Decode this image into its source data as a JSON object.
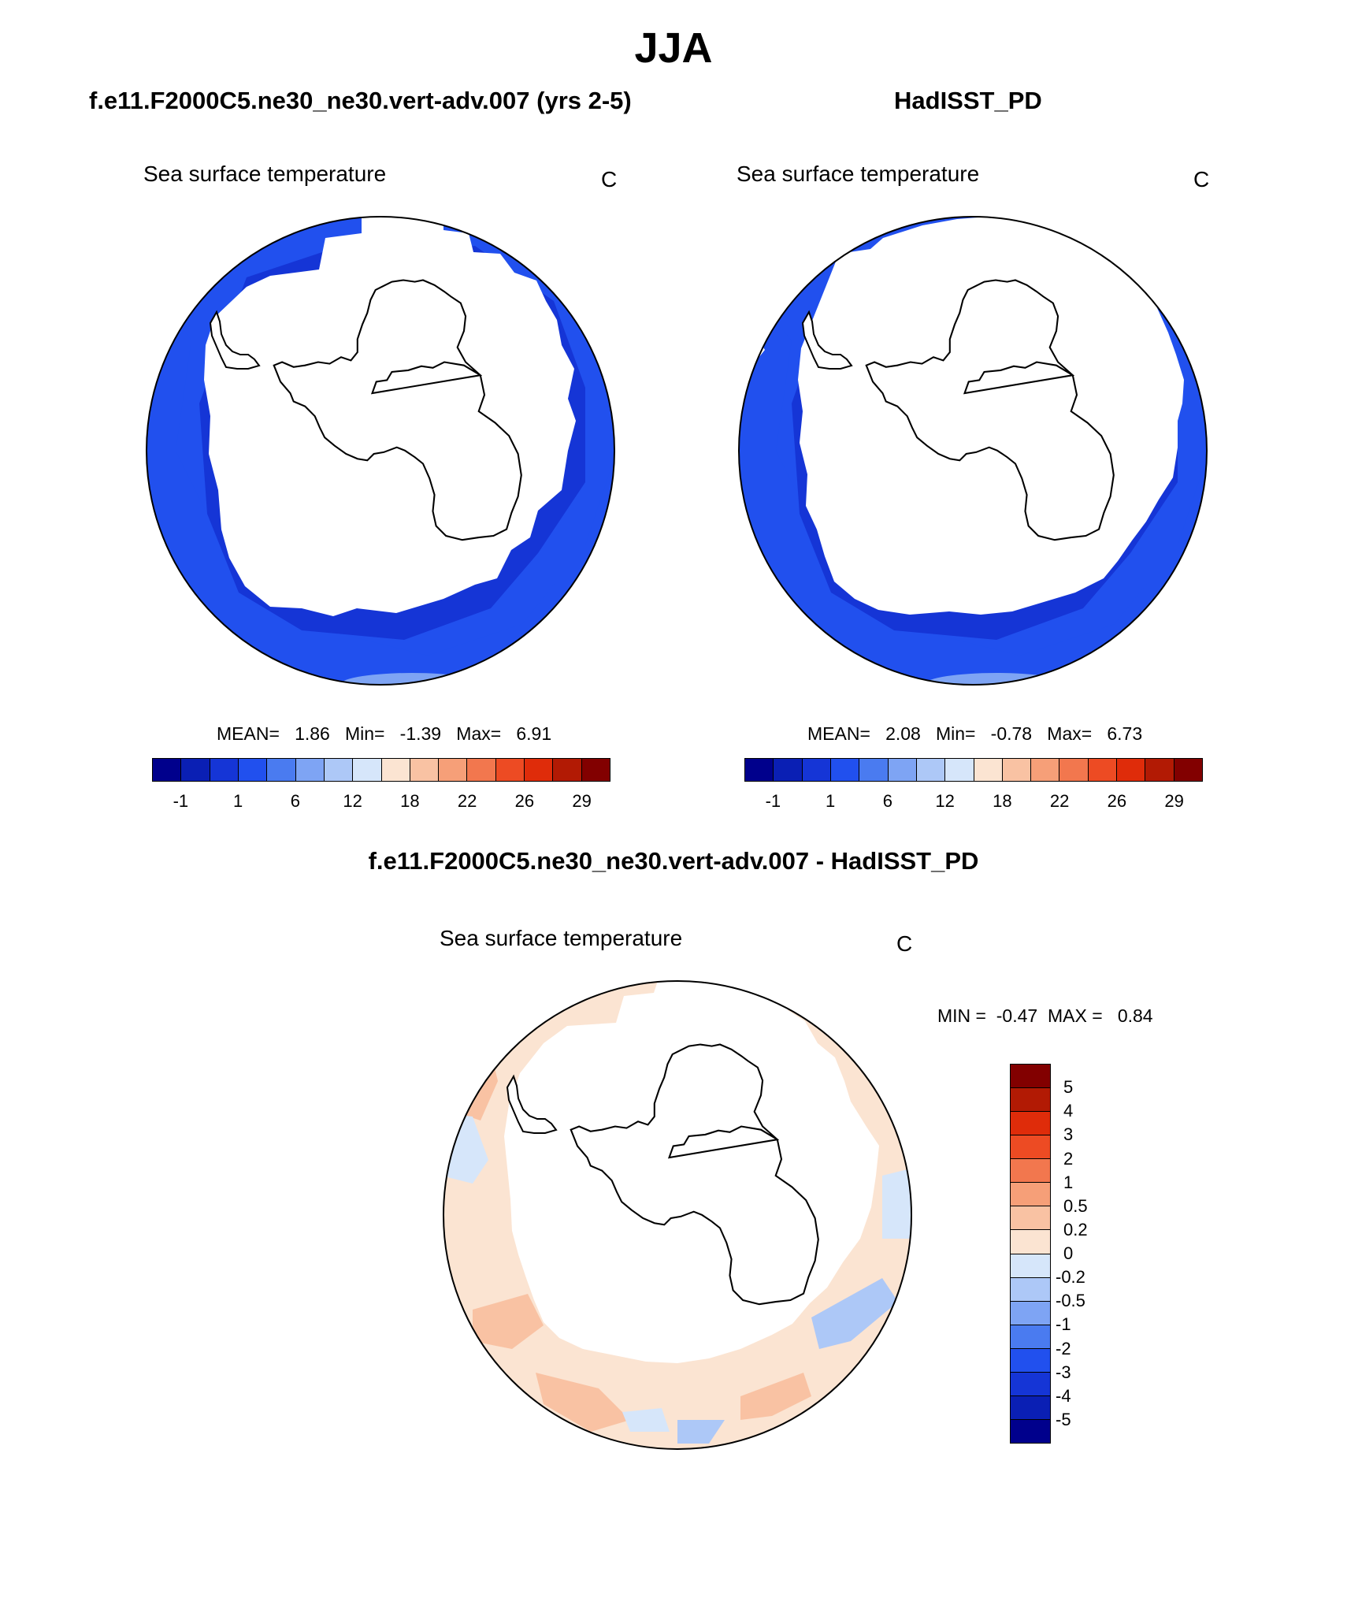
{
  "figure": {
    "season_title": "JJA",
    "left_panel_title": "f.e11.F2000C5.ne30_ne30.vert-adv.007 (yrs 2-5)",
    "right_panel_title": "HadISST_PD",
    "diff_panel_title": "f.e11.F2000C5.ne30_ne30.vert-adv.007 - HadISST_PD"
  },
  "panels": {
    "model": {
      "variable": "Sea surface temperature",
      "units": "C",
      "stats": {
        "mean_label": "MEAN=",
        "mean": "1.86",
        "min_label": "Min=",
        "min": "-1.39",
        "max_label": "Max=",
        "max": "6.91"
      }
    },
    "obs": {
      "variable": "Sea surface temperature",
      "units": "C",
      "stats": {
        "mean_label": "MEAN=",
        "mean": "2.08",
        "min_label": "Min=",
        "min": "-0.78",
        "max_label": "Max=",
        "max": "6.73"
      }
    },
    "diff": {
      "variable": "Sea surface temperature",
      "units": "C",
      "stats": {
        "min_label": "MIN =",
        "min": "-0.47",
        "max_label": "MAX =",
        "max": "0.84"
      }
    }
  },
  "colorbar_main": {
    "colors": [
      "#00008c",
      "#0a1fb4",
      "#1535d6",
      "#2150ee",
      "#4a7bf0",
      "#7ea4f4",
      "#adc8f7",
      "#d6e6fa",
      "#fbe4d2",
      "#f9c2a3",
      "#f69f78",
      "#f2774e",
      "#ed4b23",
      "#df2c0a",
      "#b21a04",
      "#820000"
    ],
    "tick_labels": [
      "-1",
      "1",
      "6",
      "12",
      "18",
      "22",
      "26",
      "29"
    ]
  },
  "colorbar_diff": {
    "colors": [
      "#820000",
      "#b21a04",
      "#df2c0a",
      "#ed4b23",
      "#f2774e",
      "#f69f78",
      "#f9c2a3",
      "#fbe4d2",
      "#d6e6fa",
      "#adc8f7",
      "#7ea4f4",
      "#4a7bf0",
      "#2150ee",
      "#1535d6",
      "#0a1fb4",
      "#00008c"
    ],
    "tick_labels": [
      "5",
      "4",
      "3",
      "2",
      "1",
      "0.5",
      "0.2",
      "0",
      "-0.2",
      "-0.5",
      "-1",
      "-2",
      "-3",
      "-4",
      "-5"
    ]
  },
  "chart_data": [
    {
      "type": "map",
      "title": "f.e11.F2000C5.ne30_ne30.vert-adv.007 (yrs 2-5)",
      "projection": "south-polar stereographic",
      "field": "Sea surface temperature",
      "units": "C",
      "mean": 1.86,
      "min": -1.39,
      "max": 6.91,
      "contour_levels": [
        -1,
        1,
        6,
        12,
        18,
        22,
        26,
        29
      ]
    },
    {
      "type": "map",
      "title": "HadISST_PD",
      "projection": "south-polar stereographic",
      "field": "Sea surface temperature",
      "units": "C",
      "mean": 2.08,
      "min": -0.78,
      "max": 6.73,
      "contour_levels": [
        -1,
        1,
        6,
        12,
        18,
        22,
        26,
        29
      ]
    },
    {
      "type": "map",
      "title": "f.e11.F2000C5.ne30_ne30.vert-adv.007 - HadISST_PD",
      "projection": "south-polar stereographic",
      "field": "Sea surface temperature difference",
      "units": "C",
      "min": -0.47,
      "max": 0.84,
      "contour_levels": [
        -5,
        -4,
        -3,
        -2,
        -1,
        -0.5,
        -0.2,
        0,
        0.2,
        0.5,
        1,
        2,
        3,
        4,
        5
      ]
    }
  ]
}
